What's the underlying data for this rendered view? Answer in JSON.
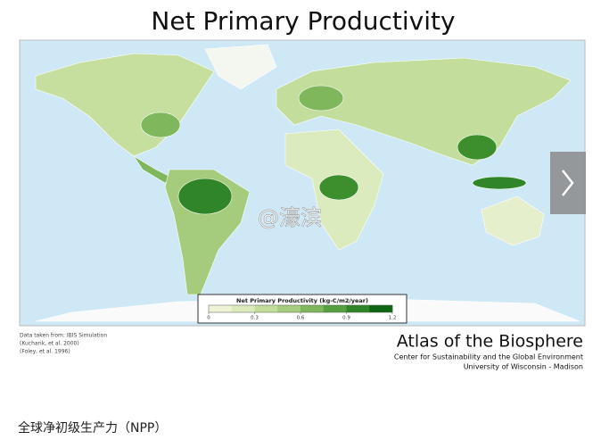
{
  "header": {
    "title": "Net Primary Productivity"
  },
  "legend": {
    "title": "Net Primary Productivity (kg-C/m2/year)",
    "ticks": [
      0,
      0.3,
      0.6,
      0.9,
      1.2
    ],
    "colors": [
      "#eef3d6",
      "#dcebbd",
      "#c3dd9c",
      "#a4cc7c",
      "#7fb75c",
      "#56a040",
      "#2f8527",
      "#0f6612"
    ]
  },
  "source": [
    "Data taken from: IBIS Simulation",
    "(Kucharik, et al. 2000)",
    "(Foley, et al. 1996)"
  ],
  "credit": {
    "title": "Atlas of the Biosphere",
    "lines": [
      "Center for Sustainability and the Global Environment",
      "University of Wisconsin - Madison"
    ]
  },
  "watermark": "@濠滨",
  "caption": "全球净初级生产力（NPP）"
}
